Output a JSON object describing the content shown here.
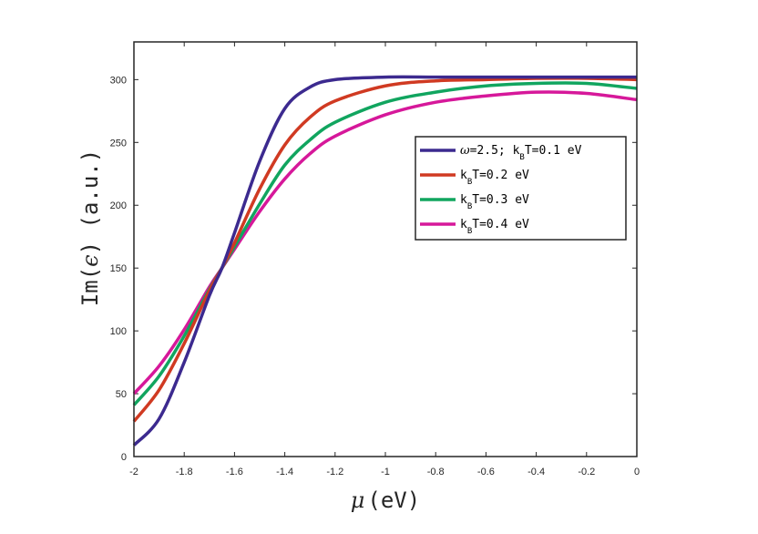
{
  "chart_data": {
    "type": "line",
    "xlabel_symbol": "μ",
    "xlabel_unit": "(eV)",
    "ylabel_prefix": "Im(",
    "ylabel_symbol": "ϵ",
    "ylabel_suffix": ") (a.u.)",
    "xlim": [
      -2,
      0
    ],
    "ylim": [
      0,
      330
    ],
    "xticks": [
      -2,
      -1.8,
      -1.6,
      -1.4,
      -1.2,
      -1,
      -0.8,
      -0.6,
      -0.4,
      -0.2,
      0
    ],
    "xtick_labels": [
      "-2",
      "-1.8",
      "-1.6",
      "-1.4",
      "-1.2",
      "-1",
      "-0.8",
      "-0.6",
      "-0.4",
      "-0.2",
      "0"
    ],
    "yticks": [
      0,
      50,
      100,
      150,
      200,
      250,
      300
    ],
    "ytick_labels": [
      "0",
      "50",
      "100",
      "150",
      "200",
      "250",
      "300"
    ],
    "grid": false,
    "legend_position": "upper-right",
    "series": [
      {
        "label_parts": {
          "omega": "ω",
          "pre": "=2.5; k",
          "sub": "B",
          "post": "T=0.1 eV"
        },
        "color": "#3c2a8f",
        "x": [
          -2,
          -1.9,
          -1.8,
          -1.7,
          -1.65,
          -1.6,
          -1.5,
          -1.4,
          -1.3,
          -1.2,
          -1.0,
          -0.8,
          -0.6,
          -0.4,
          -0.2,
          0
        ],
        "y": [
          9,
          30,
          75,
          128,
          150,
          178,
          235,
          277,
          294,
          300,
          302,
          302,
          302,
          302,
          302,
          302
        ]
      },
      {
        "label_parts": {
          "pre": "k",
          "sub": "B",
          "post": "T=0.2 eV"
        },
        "color": "#d03a22",
        "x": [
          -2,
          -1.9,
          -1.8,
          -1.7,
          -1.65,
          -1.6,
          -1.5,
          -1.4,
          -1.3,
          -1.2,
          -1.0,
          -0.8,
          -0.6,
          -0.4,
          -0.2,
          0
        ],
        "y": [
          28,
          53,
          90,
          132,
          150,
          170,
          213,
          248,
          270,
          283,
          295,
          299,
          300,
          301,
          301,
          300
        ]
      },
      {
        "label_parts": {
          "pre": "k",
          "sub": "B",
          "post": "T=0.3 eV"
        },
        "color": "#11a55f",
        "x": [
          -2,
          -1.9,
          -1.8,
          -1.7,
          -1.65,
          -1.6,
          -1.5,
          -1.4,
          -1.3,
          -1.2,
          -1.0,
          -0.8,
          -0.6,
          -0.4,
          -0.2,
          0
        ],
        "y": [
          41,
          64,
          96,
          133,
          150,
          167,
          201,
          232,
          252,
          266,
          282,
          290,
          295,
          297,
          297,
          293
        ]
      },
      {
        "label_parts": {
          "pre": "k",
          "sub": "B",
          "post": "T=0.4 eV"
        },
        "color": "#d6189a",
        "x": [
          -2,
          -1.9,
          -1.8,
          -1.7,
          -1.65,
          -1.6,
          -1.5,
          -1.4,
          -1.3,
          -1.2,
          -1.0,
          -0.8,
          -0.6,
          -0.4,
          -0.2,
          0
        ],
        "y": [
          50,
          72,
          101,
          135,
          150,
          165,
          195,
          221,
          241,
          255,
          272,
          282,
          287,
          290,
          289,
          284
        ]
      }
    ]
  }
}
